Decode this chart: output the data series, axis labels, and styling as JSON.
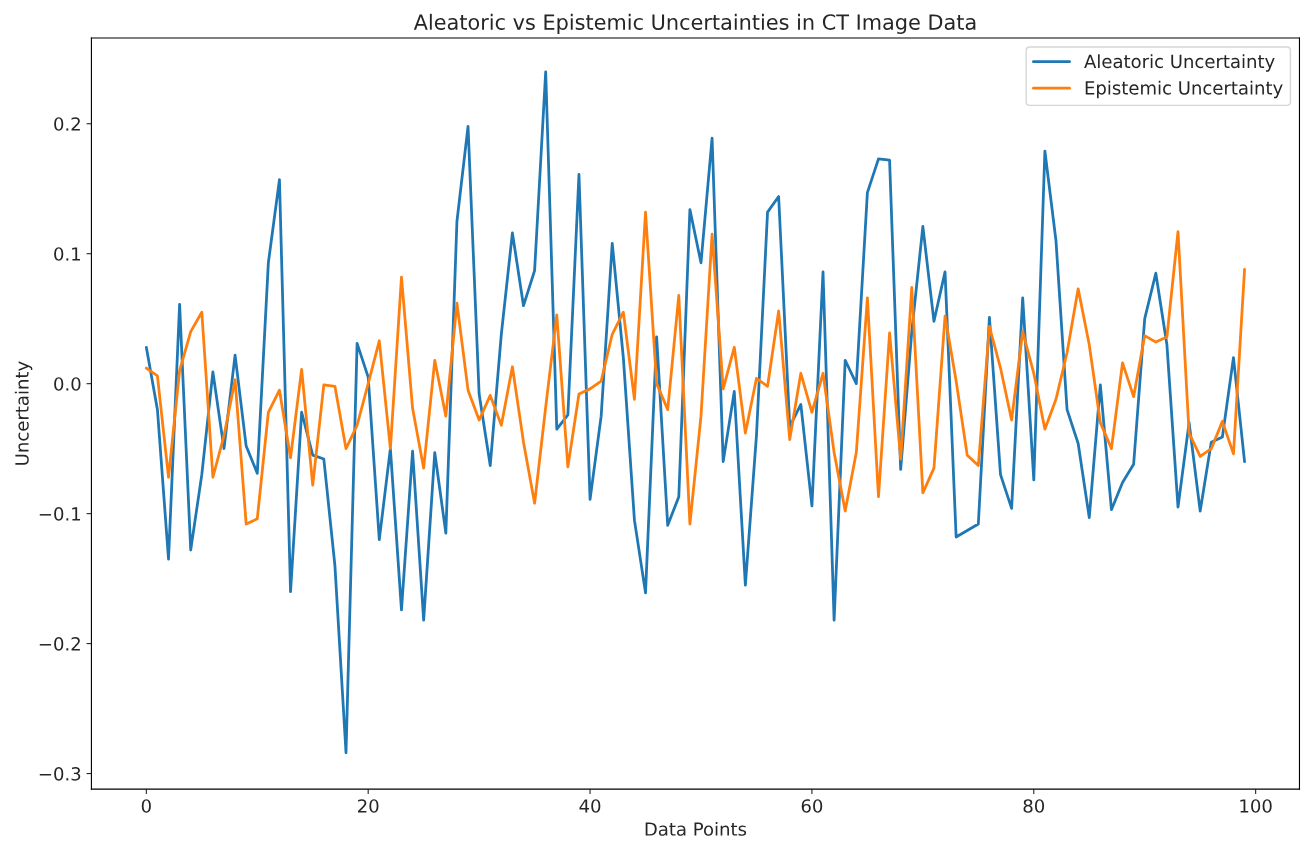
{
  "chart_data": {
    "type": "line",
    "title": "Aleatoric vs Epistemic Uncertainties in CT Image Data",
    "xlabel": "Data Points",
    "ylabel": "Uncertainty",
    "x": [
      0,
      1,
      2,
      3,
      4,
      5,
      6,
      7,
      8,
      9,
      10,
      11,
      12,
      13,
      14,
      15,
      16,
      17,
      18,
      19,
      20,
      21,
      22,
      23,
      24,
      25,
      26,
      27,
      28,
      29,
      30,
      31,
      32,
      33,
      34,
      35,
      36,
      37,
      38,
      39,
      40,
      41,
      42,
      43,
      44,
      45,
      46,
      47,
      48,
      49,
      50,
      51,
      52,
      53,
      54,
      55,
      56,
      57,
      58,
      59,
      60,
      61,
      62,
      63,
      64,
      65,
      66,
      67,
      68,
      69,
      70,
      71,
      72,
      73,
      74,
      75,
      76,
      77,
      78,
      79,
      80,
      81,
      82,
      83,
      84,
      85,
      86,
      87,
      88,
      89,
      90,
      91,
      92,
      93,
      94,
      95,
      96,
      97,
      98,
      99
    ],
    "series": [
      {
        "name": "Aleatoric Uncertainty",
        "color": "#1f77b4",
        "values": [
          0.028,
          -0.02,
          -0.135,
          0.061,
          -0.128,
          -0.07,
          0.009,
          -0.05,
          0.022,
          -0.048,
          -0.069,
          0.093,
          0.157,
          -0.16,
          -0.022,
          -0.055,
          -0.058,
          -0.14,
          -0.284,
          0.031,
          0.005,
          -0.12,
          -0.05,
          -0.174,
          -0.052,
          -0.182,
          -0.053,
          -0.115,
          0.125,
          0.198,
          -0.008,
          -0.063,
          0.038,
          0.116,
          0.06,
          0.087,
          0.24,
          -0.035,
          -0.024,
          0.161,
          -0.089,
          -0.025,
          0.108,
          0.02,
          -0.105,
          -0.161,
          0.036,
          -0.109,
          -0.087,
          0.134,
          0.093,
          0.189,
          -0.06,
          -0.006,
          -0.155,
          -0.04,
          0.132,
          0.144,
          -0.033,
          -0.016,
          -0.094,
          0.086,
          -0.182,
          0.018,
          0.0,
          0.147,
          0.173,
          0.172,
          -0.066,
          0.04,
          0.121,
          0.048,
          0.086,
          -0.118,
          -0.113,
          -0.108,
          0.051,
          -0.07,
          -0.096,
          0.066,
          -0.074,
          0.179,
          0.11,
          -0.02,
          -0.046,
          -0.103,
          -0.001,
          -0.097,
          -0.076,
          -0.062,
          0.05,
          0.085,
          0.03,
          -0.095,
          -0.03,
          -0.098,
          -0.045,
          -0.041,
          0.02,
          -0.06
        ]
      },
      {
        "name": "Epistemic Uncertainty",
        "color": "#ff7f0e",
        "values": [
          0.012,
          0.006,
          -0.072,
          0.01,
          0.04,
          0.055,
          -0.072,
          -0.04,
          0.003,
          -0.108,
          -0.104,
          -0.022,
          -0.005,
          -0.057,
          0.011,
          -0.078,
          -0.001,
          -0.002,
          -0.05,
          -0.032,
          0.0,
          0.033,
          -0.05,
          0.082,
          -0.019,
          -0.065,
          0.018,
          -0.025,
          0.062,
          -0.005,
          -0.028,
          -0.009,
          -0.032,
          0.013,
          -0.045,
          -0.092,
          -0.018,
          0.053,
          -0.064,
          -0.008,
          -0.004,
          0.002,
          0.038,
          0.055,
          -0.012,
          0.132,
          0.0,
          -0.02,
          0.068,
          -0.108,
          -0.025,
          0.115,
          -0.004,
          0.028,
          -0.038,
          0.004,
          -0.002,
          0.056,
          -0.043,
          0.008,
          -0.022,
          0.008,
          -0.053,
          -0.098,
          -0.053,
          0.066,
          -0.087,
          0.039,
          -0.058,
          0.074,
          -0.084,
          -0.065,
          0.052,
          0.002,
          -0.055,
          -0.063,
          0.044,
          0.012,
          -0.028,
          0.04,
          0.008,
          -0.035,
          -0.012,
          0.024,
          0.073,
          0.03,
          -0.03,
          -0.05,
          0.016,
          -0.01,
          0.037,
          0.032,
          0.036,
          0.117,
          -0.038,
          -0.056,
          -0.05,
          -0.029,
          -0.054,
          0.088
        ]
      }
    ],
    "xlim": [
      -4.95,
      103.95
    ],
    "xticks": [
      0,
      20,
      40,
      60,
      80,
      100
    ],
    "ylim": [
      -0.312,
      0.266
    ],
    "yticks": [
      {
        "value": -0.3,
        "label": "−0.3"
      },
      {
        "value": -0.2,
        "label": "−0.2"
      },
      {
        "value": -0.1,
        "label": "−0.1"
      },
      {
        "value": 0,
        "label": "0.0"
      },
      {
        "value": 0.1,
        "label": "0.1"
      },
      {
        "value": 0.2,
        "label": "0.2"
      }
    ],
    "grid": false,
    "legend": "top right"
  }
}
